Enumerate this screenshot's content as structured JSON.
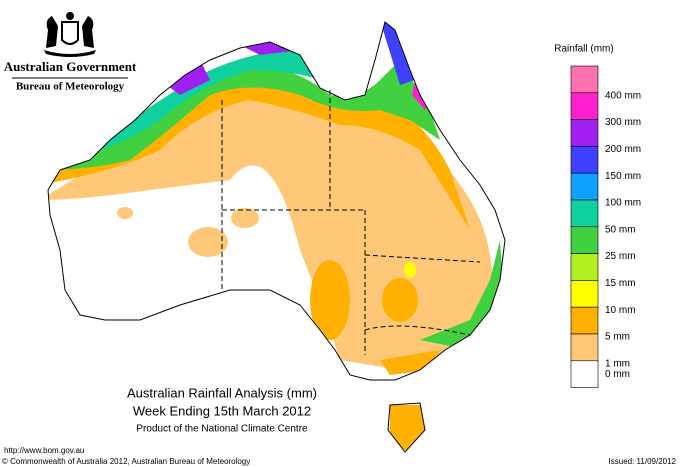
{
  "header": {
    "government": "Australian Government",
    "agency": "Bureau of Meteorology"
  },
  "map": {
    "title": "Australian Rainfall Analysis (mm)",
    "subtitle": "Week Ending 15th March 2012",
    "credit": "Product of the National Climate Centre"
  },
  "legend": {
    "title": "Rainfall (mm)",
    "colors": [
      "#ff70b0",
      "#ff20d0",
      "#a020f0",
      "#4040ff",
      "#10a0ff",
      "#10d0a0",
      "#40d040",
      "#b0f020",
      "#ffff00",
      "#ffb000",
      "#ffc878",
      "#ffffff"
    ],
    "labels": [
      "400 mm",
      "300 mm",
      "200 mm",
      "150 mm",
      "100 mm",
      "50 mm",
      "25 mm",
      "15 mm",
      "10 mm",
      "5 mm",
      "1 mm",
      "0 mm"
    ]
  },
  "footer": {
    "url": "http://www.bom.gov.au",
    "copyright": "© Commonwealth of Australia 2012, Australian Bureau of Meteorology",
    "issued": "Issued: 11/09/2012"
  }
}
